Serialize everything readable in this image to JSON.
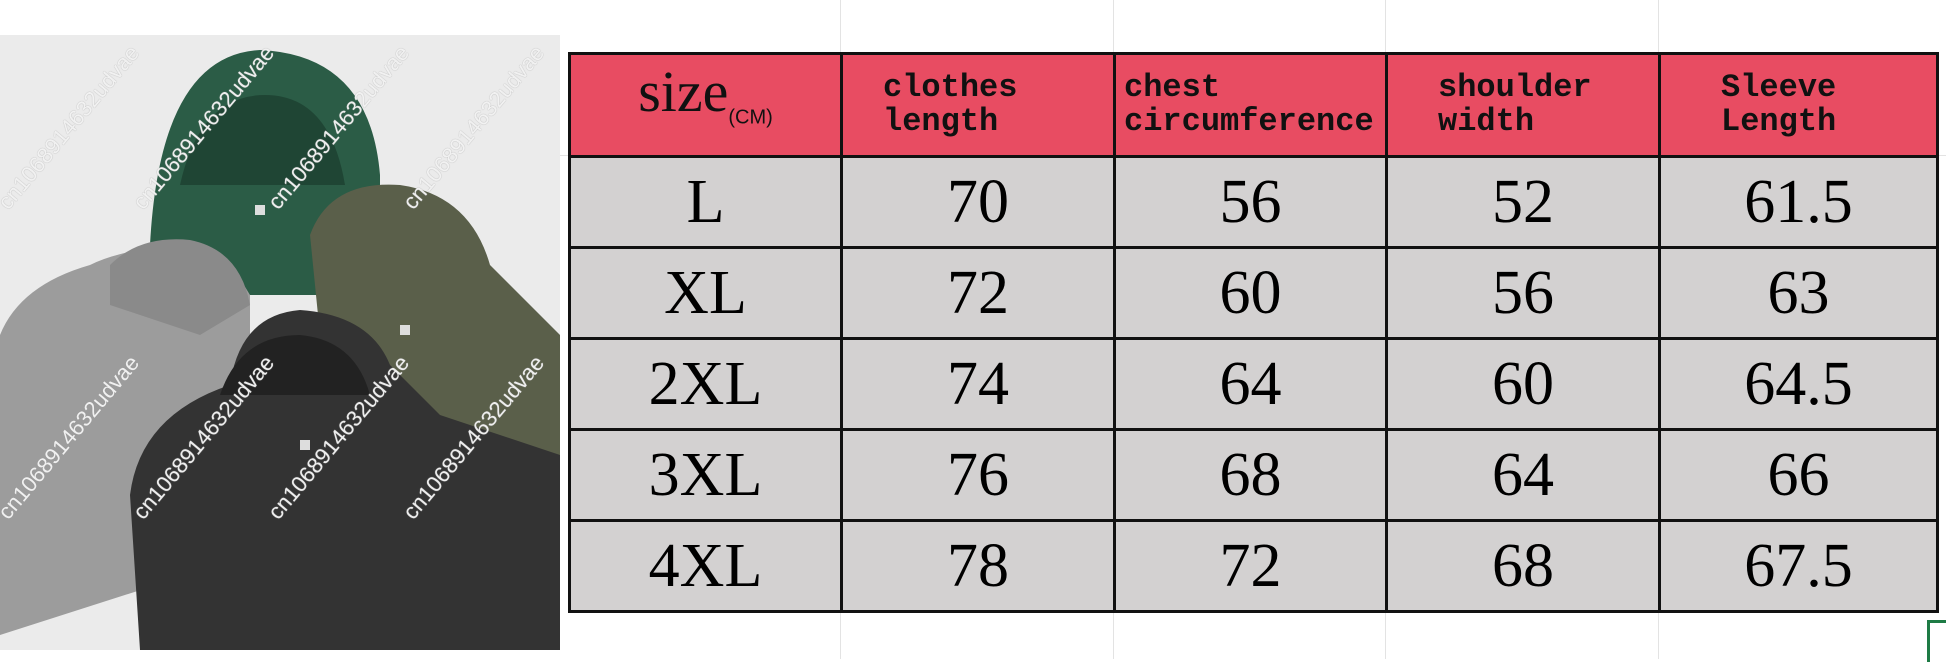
{
  "size_chart": {
    "header": {
      "size_label": "size",
      "size_unit": "(CM)",
      "columns": [
        "clothes length",
        "chest circumference",
        "shoulder width",
        "Sleeve Length"
      ]
    },
    "rows": [
      {
        "size": "L",
        "values": [
          "70",
          "56",
          "52",
          "61.5"
        ]
      },
      {
        "size": "XL",
        "values": [
          "72",
          "60",
          "56",
          "63"
        ]
      },
      {
        "size": "2XL",
        "values": [
          "74",
          "64",
          "60",
          "64.5"
        ]
      },
      {
        "size": "3XL",
        "values": [
          "76",
          "68",
          "64",
          "66"
        ]
      },
      {
        "size": "4XL",
        "values": [
          "78",
          "72",
          "68",
          "67.5"
        ]
      }
    ]
  },
  "watermark": "cn1068914632udvae",
  "colors": {
    "header": "#e84c62",
    "cell": "#d3d1d1",
    "selection": "#1e7b45"
  },
  "photo": {
    "items": [
      "green hoodie",
      "olive hoodie",
      "grey hoodie",
      "black hoodie"
    ]
  }
}
